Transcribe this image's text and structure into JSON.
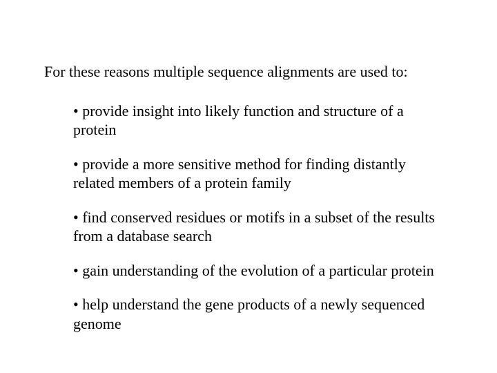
{
  "intro": "For these reasons multiple sequence alignments are used to:",
  "bullets": [
    "• provide insight into likely function and structure of a protein",
    "• provide a more sensitive method for finding distantly related members of a protein family",
    "• find conserved residues or motifs in a subset of the results from a database search",
    "• gain understanding of the evolution of a particular protein",
    "• help understand the gene products of a newly sequenced genome"
  ],
  "colors": {
    "background": "#ffffff",
    "text": "#000000"
  },
  "typography": {
    "font_family": "Times New Roman",
    "intro_fontsize": 22,
    "bullet_fontsize": 22
  }
}
